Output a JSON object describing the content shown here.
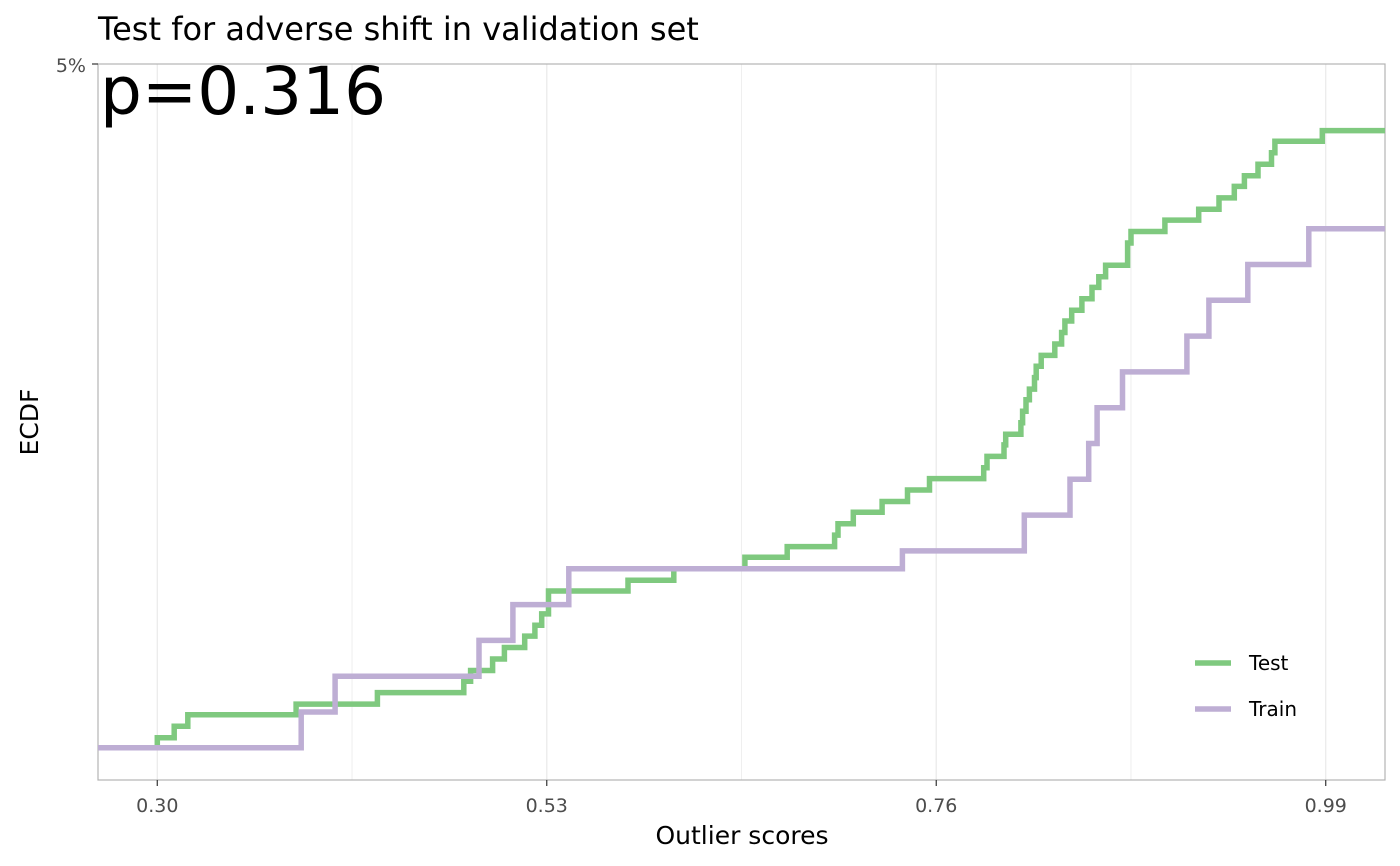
{
  "chart_data": {
    "type": "line",
    "step": true,
    "title": "Test for adverse shift in validation set",
    "annotation": "p=0.316",
    "xlabel": "Outlier scores",
    "ylabel": "ECDF",
    "xlim": [
      0.265,
      1.025
    ],
    "x_ticks": [
      0.3,
      0.53,
      0.76,
      0.99
    ],
    "x_tick_labels": [
      "0.30",
      "0.53",
      "0.76",
      "0.99"
    ],
    "y_tick_labels": [
      "5%"
    ],
    "grid": true,
    "legend_position": "bottom-right",
    "series": [
      {
        "name": "Test",
        "color": "#7FC97F",
        "points": [
          [
            0.265,
            0.045
          ],
          [
            0.3,
            0.059
          ],
          [
            0.31,
            0.075
          ],
          [
            0.318,
            0.091
          ],
          [
            0.382,
            0.106
          ],
          [
            0.43,
            0.122
          ],
          [
            0.481,
            0.138
          ],
          [
            0.485,
            0.153
          ],
          [
            0.498,
            0.169
          ],
          [
            0.505,
            0.185
          ],
          [
            0.517,
            0.201
          ],
          [
            0.523,
            0.216
          ],
          [
            0.527,
            0.232
          ],
          [
            0.531,
            0.248
          ],
          [
            0.531,
            0.264
          ],
          [
            0.578,
            0.279
          ],
          [
            0.605,
            0.295
          ],
          [
            0.647,
            0.311
          ],
          [
            0.672,
            0.326
          ],
          [
            0.7,
            0.342
          ],
          [
            0.702,
            0.358
          ],
          [
            0.711,
            0.374
          ],
          [
            0.728,
            0.389
          ],
          [
            0.743,
            0.405
          ],
          [
            0.756,
            0.421
          ],
          [
            0.788,
            0.436
          ],
          [
            0.79,
            0.452
          ],
          [
            0.8,
            0.468
          ],
          [
            0.801,
            0.483
          ],
          [
            0.81,
            0.499
          ],
          [
            0.811,
            0.515
          ],
          [
            0.813,
            0.531
          ],
          [
            0.815,
            0.546
          ],
          [
            0.818,
            0.562
          ],
          [
            0.819,
            0.578
          ],
          [
            0.822,
            0.593
          ],
          [
            0.83,
            0.609
          ],
          [
            0.834,
            0.625
          ],
          [
            0.836,
            0.641
          ],
          [
            0.84,
            0.656
          ],
          [
            0.846,
            0.672
          ],
          [
            0.852,
            0.688
          ],
          [
            0.856,
            0.703
          ],
          [
            0.86,
            0.719
          ],
          [
            0.873,
            0.735
          ],
          [
            0.873,
            0.75
          ],
          [
            0.875,
            0.766
          ],
          [
            0.895,
            0.782
          ],
          [
            0.915,
            0.797
          ],
          [
            0.927,
            0.813
          ],
          [
            0.936,
            0.829
          ],
          [
            0.942,
            0.844
          ],
          [
            0.95,
            0.86
          ],
          [
            0.958,
            0.876
          ],
          [
            0.96,
            0.892
          ],
          [
            0.988,
            0.907
          ],
          [
            1.025,
            0.907
          ]
        ]
      },
      {
        "name": "Train",
        "color": "#BEAED4",
        "points": [
          [
            0.265,
            0.045
          ],
          [
            0.385,
            0.095
          ],
          [
            0.405,
            0.145
          ],
          [
            0.49,
            0.195
          ],
          [
            0.51,
            0.245
          ],
          [
            0.543,
            0.295
          ],
          [
            0.74,
            0.32
          ],
          [
            0.812,
            0.37
          ],
          [
            0.839,
            0.42
          ],
          [
            0.85,
            0.47
          ],
          [
            0.855,
            0.52
          ],
          [
            0.87,
            0.57
          ],
          [
            0.908,
            0.62
          ],
          [
            0.921,
            0.67
          ],
          [
            0.944,
            0.72
          ],
          [
            0.98,
            0.77
          ],
          [
            1.025,
            0.77
          ]
        ]
      }
    ]
  }
}
